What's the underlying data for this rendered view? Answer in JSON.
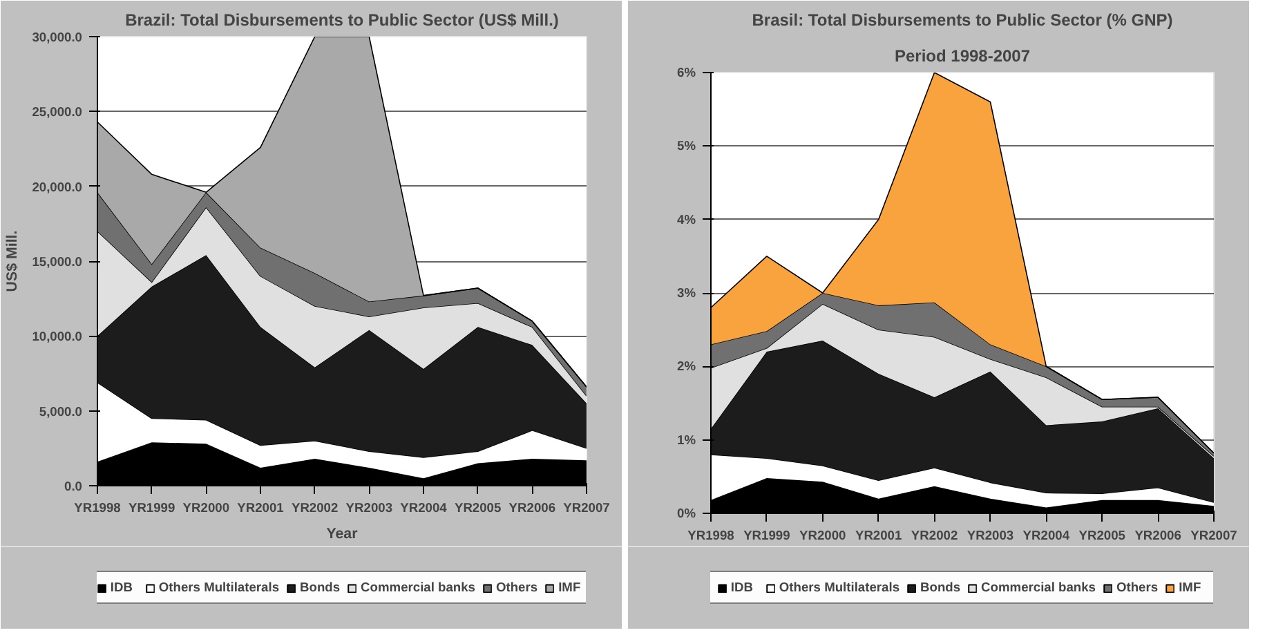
{
  "chart_data": [
    {
      "type": "area",
      "stacked": true,
      "title": "Brazil: Total Disbursements to Public Sector (US$ Mill.)",
      "xlabel": "Year",
      "ylabel": "US$ Mill.",
      "categories": [
        "YR1998",
        "YR1999",
        "YR2000",
        "YR2001",
        "YR2002",
        "YR2003",
        "YR2004",
        "YR2005",
        "YR2006",
        "YR2007"
      ],
      "series": [
        {
          "name": "IDB",
          "color": "#000000",
          "values": [
            1600,
            2900,
            2800,
            1200,
            1800,
            1200,
            500,
            1500,
            1800,
            1700
          ]
        },
        {
          "name": "Others Multilaterals",
          "color": "#ffffff",
          "values": [
            5300,
            1600,
            1600,
            1500,
            1200,
            1100,
            1400,
            800,
            1900,
            800
          ]
        },
        {
          "name": "Bonds",
          "color": "#1c1c1c",
          "values": [
            3100,
            8800,
            11000,
            7900,
            4900,
            8100,
            5900,
            8300,
            5700,
            3000
          ]
        },
        {
          "name": "Commercial banks",
          "color": "#e0e0e0",
          "values": [
            7000,
            300,
            3200,
            3400,
            4100,
            900,
            4100,
            1600,
            1200,
            500
          ]
        },
        {
          "name": "Others",
          "color": "#707070",
          "values": [
            2600,
            1200,
            1000,
            1900,
            2200,
            1000,
            800,
            1000,
            400,
            600
          ]
        },
        {
          "name": "IMF",
          "color": "#a9a9a9",
          "values": [
            4700,
            6000,
            0,
            6700,
            15800,
            17700,
            0,
            0,
            0,
            0
          ]
        }
      ],
      "ylim": [
        0,
        30000
      ],
      "yticks": [
        {
          "value": 0,
          "label": "0.0"
        },
        {
          "value": 5000,
          "label": "5,000.0"
        },
        {
          "value": 10000,
          "label": "10,000.0"
        },
        {
          "value": 15000,
          "label": "15,000.0"
        },
        {
          "value": 20000,
          "label": "20,000.0"
        },
        {
          "value": 25000,
          "label": "25,000.0"
        },
        {
          "value": 30000,
          "label": "30,000.0"
        }
      ],
      "grid": "y",
      "legend": "bottom"
    },
    {
      "type": "area",
      "stacked": true,
      "title": "Brasil: Total Disbursements to Public Sector (% GNP)",
      "subtitle": "Period 1998-2007",
      "categories": [
        "YR1998",
        "YR1999",
        "YR2000",
        "YR2001",
        "YR2002",
        "YR2003",
        "YR2004",
        "YR2005",
        "YR2006",
        "YR2007"
      ],
      "series": [
        {
          "name": "IDB",
          "color": "#000000",
          "values": [
            0.18,
            0.48,
            0.43,
            0.2,
            0.37,
            0.2,
            0.08,
            0.18,
            0.18,
            0.1
          ]
        },
        {
          "name": "Others Multilaterals",
          "color": "#ffffff",
          "values": [
            0.62,
            0.27,
            0.22,
            0.25,
            0.25,
            0.22,
            0.2,
            0.09,
            0.17,
            0.05
          ]
        },
        {
          "name": "Bonds",
          "color": "#1c1c1c",
          "values": [
            0.35,
            1.45,
            1.7,
            1.45,
            0.96,
            1.51,
            0.92,
            0.98,
            1.08,
            0.6
          ]
        },
        {
          "name": "Commercial banks",
          "color": "#e0e0e0",
          "values": [
            0.83,
            0.05,
            0.5,
            0.6,
            0.82,
            0.17,
            0.65,
            0.2,
            0.02,
            0.03
          ]
        },
        {
          "name": "Others",
          "color": "#707070",
          "values": [
            0.32,
            0.23,
            0.15,
            0.33,
            0.47,
            0.2,
            0.15,
            0.1,
            0.13,
            0.04
          ]
        },
        {
          "name": "IMF",
          "color": "#f9a33f",
          "values": [
            0.5,
            1.02,
            0,
            1.17,
            3.13,
            3.3,
            0,
            0,
            0,
            0
          ]
        }
      ],
      "ylim": [
        0,
        6
      ],
      "yticks": [
        {
          "value": 0,
          "label": "0%"
        },
        {
          "value": 1,
          "label": "1%"
        },
        {
          "value": 2,
          "label": "2%"
        },
        {
          "value": 3,
          "label": "3%"
        },
        {
          "value": 4,
          "label": "4%"
        },
        {
          "value": 5,
          "label": "5%"
        },
        {
          "value": 6,
          "label": "6%"
        }
      ],
      "grid": "y",
      "legend": "bottom"
    }
  ]
}
